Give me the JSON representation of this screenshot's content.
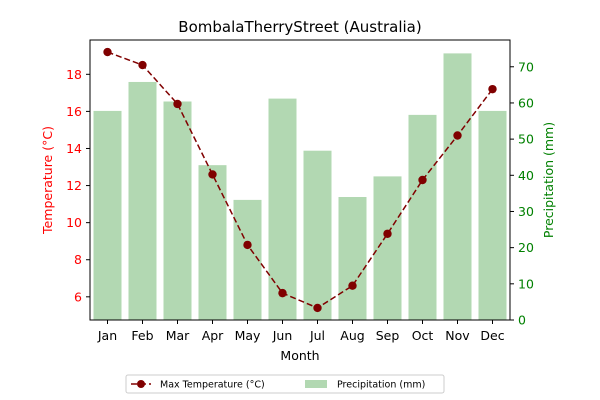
{
  "chart_data": {
    "type": "bar+line",
    "title": "BombalaTherryStreet (Australia)",
    "xlabel": "Month",
    "categories": [
      "Jan",
      "Feb",
      "Mar",
      "Apr",
      "May",
      "Jun",
      "Jul",
      "Aug",
      "Sep",
      "Oct",
      "Nov",
      "Dec"
    ],
    "series": [
      {
        "name": "Max Temperature (°C)",
        "type": "line",
        "axis": "left",
        "color": "#800000",
        "values": [
          19.2,
          18.5,
          16.4,
          12.6,
          8.8,
          6.2,
          5.4,
          6.6,
          9.4,
          12.3,
          14.7,
          17.2
        ]
      },
      {
        "name": "Precipitation (mm)",
        "type": "bar",
        "axis": "right",
        "color": "#b2d8b2",
        "values": [
          57.8,
          65.8,
          60.4,
          42.8,
          33.2,
          61.2,
          46.8,
          34.0,
          39.7,
          56.7,
          73.7,
          57.8
        ]
      }
    ],
    "ylabel_left": "Temperature (°C)",
    "ylabel_left_color": "#ff0000",
    "ylim_left": [
      4.75,
      19.85
    ],
    "yticks_left": [
      6,
      8,
      10,
      12,
      14,
      16,
      18
    ],
    "ylabel_right": "Precipitation (mm)",
    "ylabel_right_color": "#008000",
    "ylim_right": [
      0,
      77.4
    ],
    "yticks_right": [
      0,
      10,
      20,
      30,
      40,
      50,
      60,
      70
    ],
    "grid": false,
    "legend_placement": "bottom-center"
  }
}
